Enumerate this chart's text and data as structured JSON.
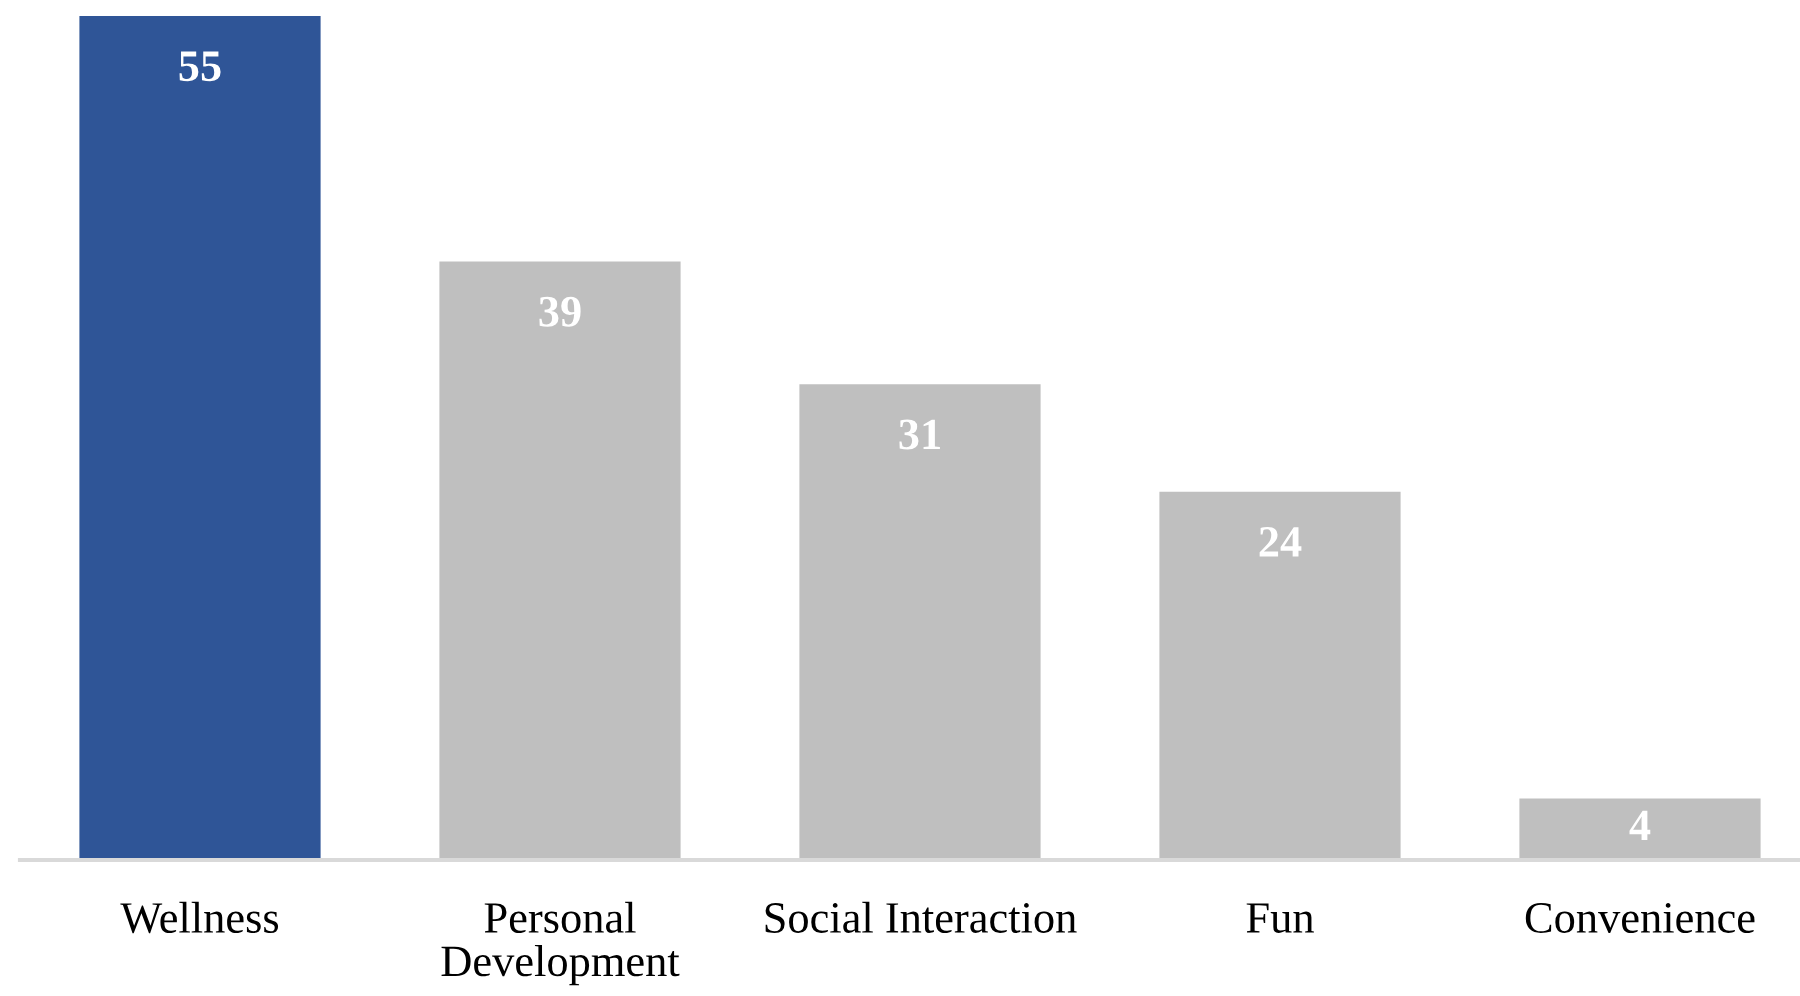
{
  "chart_data": {
    "type": "bar",
    "categories": [
      "Wellness",
      "Personal Development",
      "Social Interaction",
      "Fun",
      "Convenience"
    ],
    "values": [
      55,
      39,
      31,
      24,
      4
    ],
    "colors": [
      "#2f5597",
      "#bfbfbf",
      "#bfbfbf",
      "#bfbfbf",
      "#bfbfbf"
    ],
    "data_labels": true
  }
}
